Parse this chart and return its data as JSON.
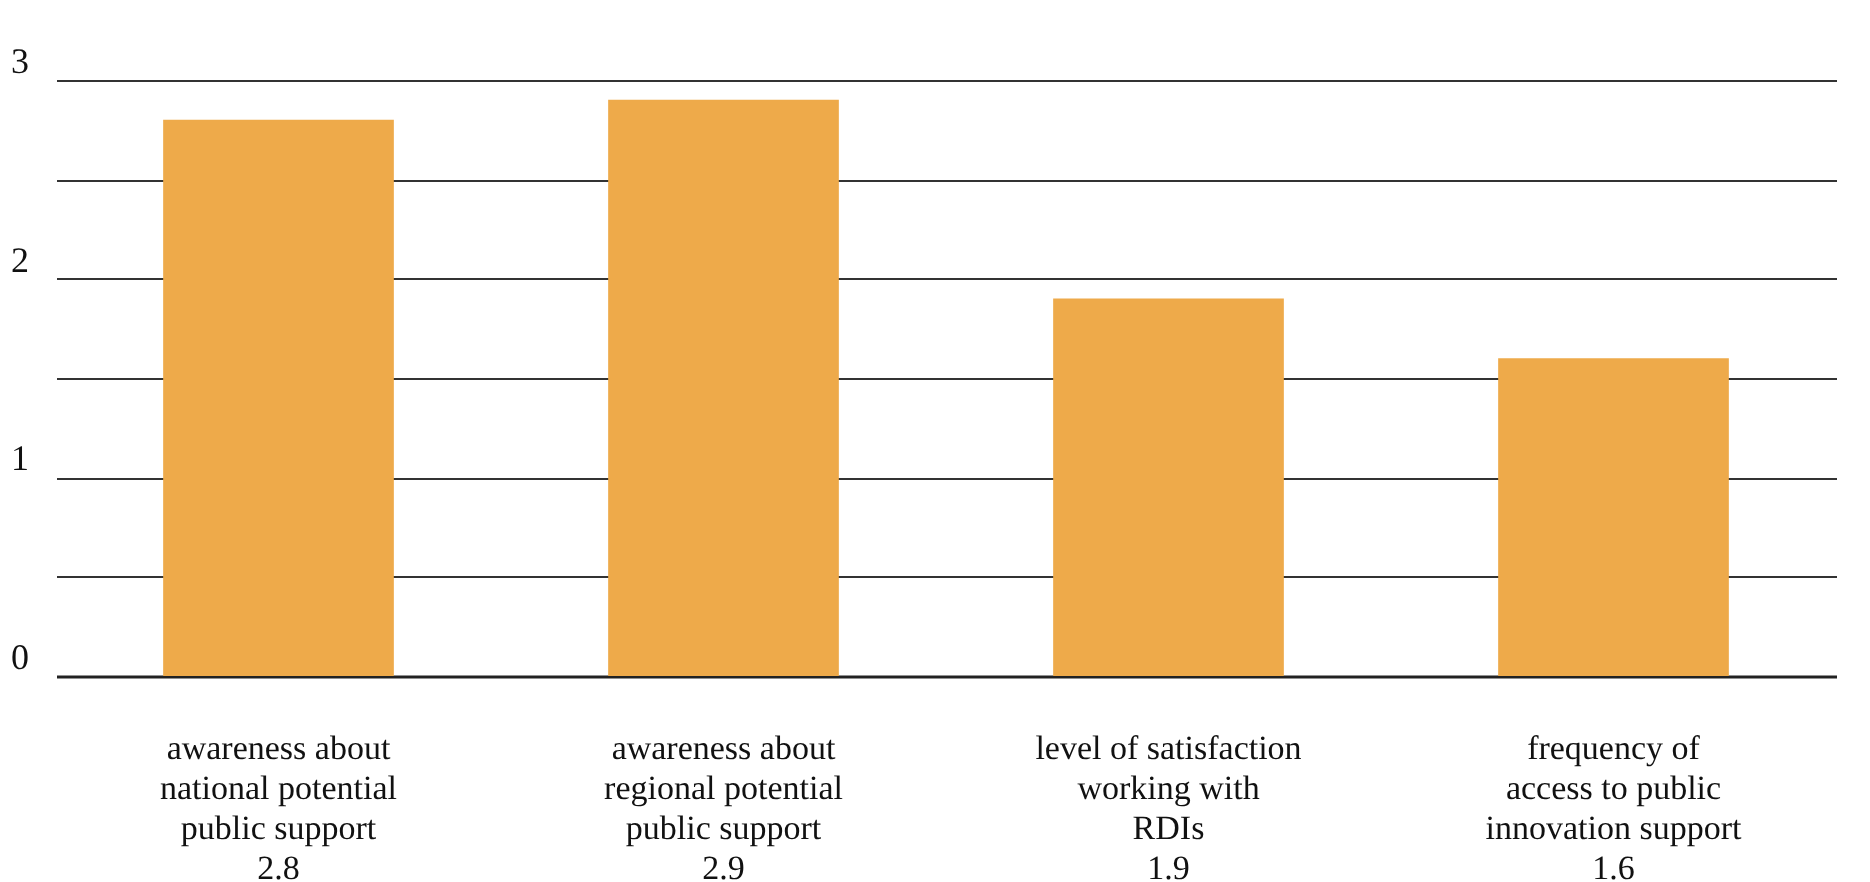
{
  "chart_data": {
    "type": "bar",
    "categories": [
      "awareness about\nnational potential\npublic support",
      "awareness about\nregional potential\npublic support",
      "level of satisfaction\nworking with\nRDIs",
      "frequency of\naccess to public\ninnovation support"
    ],
    "values": [
      2.8,
      2.9,
      1.9,
      1.6
    ],
    "color": "#eeaa4a",
    "data_labels": true,
    "ylim": [
      0,
      3
    ],
    "yticks": [
      0,
      {
        "value": 0.5,
        "label": null
      },
      1,
      {
        "value": 1.5,
        "label": null
      },
      2,
      {
        "value": 2.5,
        "label": null
      },
      3
    ],
    "grid": "y"
  }
}
